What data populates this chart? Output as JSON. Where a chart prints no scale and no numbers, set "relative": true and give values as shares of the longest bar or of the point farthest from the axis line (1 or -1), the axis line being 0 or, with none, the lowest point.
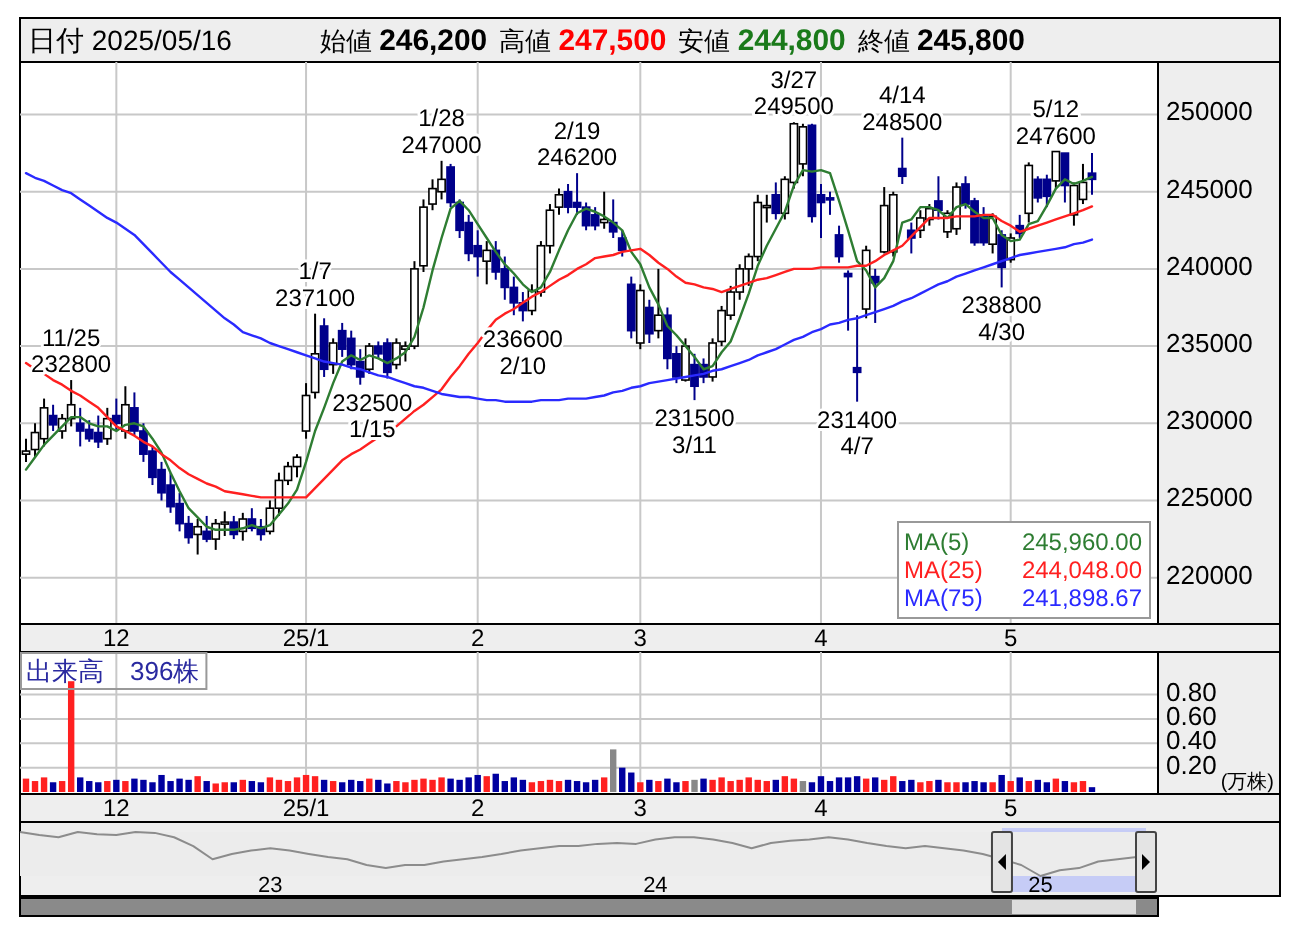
{
  "chart_data": [
    {
      "type": "other",
      "title": "日付 2025/05/16",
      "annotations": [
        "始値 **246,200**",
        "高値 **247,500**",
        "安値 **244,800**",
        "終値 **245,800**"
      ]
    },
    {
      "type": "candlestick",
      "categories": [
        null,
        null,
        null,
        null,
        null,
        null,
        null,
        null,
        null,
        null,
        "12",
        null,
        null,
        null,
        null,
        null,
        null,
        null,
        null,
        null,
        null,
        null,
        null,
        null,
        null,
        null,
        null,
        null,
        null,
        null,
        null,
        "25/1",
        null,
        null,
        null,
        null,
        null,
        null,
        null,
        null,
        null,
        null,
        null,
        null,
        null,
        null,
        null,
        null,
        null,
        null,
        "2",
        null,
        null,
        null,
        null,
        null,
        null,
        null,
        null,
        null,
        null,
        null,
        null,
        null,
        null,
        null,
        null,
        null,
        "3",
        null,
        null,
        null,
        null,
        null,
        null,
        null,
        null,
        null,
        null,
        null,
        null,
        null,
        null,
        null,
        null,
        null,
        null,
        null,
        "4",
        null,
        null,
        null,
        null,
        null,
        null,
        null,
        null,
        null,
        null,
        null,
        null,
        null,
        null,
        null,
        null,
        null,
        null,
        null,
        null,
        "5",
        null,
        null,
        null,
        null,
        null,
        null,
        null,
        null,
        null
      ],
      "ohlc": [
        [
          228000,
          229000,
          227500,
          228200
        ],
        [
          228300,
          230000,
          227800,
          229400
        ],
        [
          229000,
          231600,
          228500,
          231000
        ],
        [
          230500,
          231200,
          229500,
          229900
        ],
        [
          229500,
          230600,
          229000,
          230300
        ],
        [
          230300,
          232800,
          229800,
          231200
        ],
        [
          230000,
          231000,
          228500,
          229500
        ],
        [
          229600,
          230200,
          228800,
          229000
        ],
        [
          229400,
          230500,
          228400,
          228800
        ],
        [
          229000,
          231000,
          228600,
          230300
        ],
        [
          230500,
          231600,
          229500,
          230000
        ],
        [
          229500,
          232400,
          229000,
          231200
        ],
        [
          231000,
          232000,
          229200,
          229500
        ],
        [
          229500,
          230000,
          227500,
          228000
        ],
        [
          228200,
          228500,
          226000,
          226500
        ],
        [
          227000,
          227500,
          225000,
          225500
        ],
        [
          226000,
          226800,
          224200,
          224600
        ],
        [
          224800,
          225500,
          223000,
          223500
        ],
        [
          223500,
          224000,
          222200,
          222600
        ],
        [
          222800,
          223800,
          221500,
          223300
        ],
        [
          223000,
          224000,
          222300,
          222500
        ],
        [
          222500,
          223800,
          221800,
          223500
        ],
        [
          223500,
          224300,
          222700,
          223600
        ],
        [
          223600,
          224000,
          222500,
          222800
        ],
        [
          223000,
          224200,
          222400,
          223800
        ],
        [
          223800,
          224500,
          223000,
          223200
        ],
        [
          223300,
          223800,
          222400,
          222800
        ],
        [
          223000,
          225000,
          222800,
          224500
        ],
        [
          224500,
          226800,
          224000,
          226300
        ],
        [
          226300,
          227500,
          226000,
          227200
        ],
        [
          227200,
          228000,
          226500,
          227800
        ],
        [
          229500,
          232600,
          229000,
          231800
        ],
        [
          232000,
          237100,
          231600,
          234500
        ],
        [
          236300,
          236800,
          233000,
          233500
        ],
        [
          233800,
          235500,
          233200,
          235200
        ],
        [
          236000,
          236500,
          234300,
          234800
        ],
        [
          235500,
          236000,
          233500,
          233800
        ],
        [
          234000,
          234800,
          232500,
          233000
        ],
        [
          233500,
          235200,
          233200,
          235000
        ],
        [
          235000,
          235300,
          234200,
          234500
        ],
        [
          235200,
          235500,
          232900,
          233300
        ],
        [
          233800,
          235500,
          233500,
          235200
        ],
        [
          234800,
          235300,
          234000,
          235000
        ],
        [
          235000,
          240500,
          234800,
          240000
        ],
        [
          240200,
          244500,
          239800,
          244000
        ],
        [
          244200,
          245800,
          243800,
          245200
        ],
        [
          245000,
          247000,
          244500,
          245800
        ],
        [
          246600,
          246800,
          244000,
          244300
        ],
        [
          244300,
          244500,
          242000,
          242500
        ],
        [
          243000,
          243500,
          240500,
          241000
        ],
        [
          241500,
          242500,
          239500,
          240800
        ],
        [
          240500,
          241800,
          239000,
          241200
        ],
        [
          241200,
          241800,
          239300,
          239800
        ],
        [
          240000,
          240800,
          238000,
          238800
        ],
        [
          238800,
          239500,
          237000,
          237800
        ],
        [
          237800,
          238500,
          236600,
          237300
        ],
        [
          237300,
          239000,
          237000,
          238600
        ],
        [
          238500,
          241800,
          238200,
          241500
        ],
        [
          241500,
          244200,
          241000,
          243800
        ],
        [
          244000,
          245200,
          243500,
          244800
        ],
        [
          245000,
          245500,
          243600,
          244000
        ],
        [
          244300,
          246200,
          243500,
          244000
        ],
        [
          244000,
          244300,
          242500,
          242800
        ],
        [
          243500,
          244000,
          242500,
          242800
        ],
        [
          243000,
          245000,
          242600,
          243200
        ],
        [
          243000,
          244500,
          242000,
          242400
        ],
        [
          242000,
          242500,
          240800,
          241200
        ],
        [
          239000,
          239500,
          235500,
          236000
        ],
        [
          235200,
          239000,
          234800,
          238600
        ],
        [
          237500,
          238000,
          235200,
          235800
        ],
        [
          236000,
          240000,
          235500,
          237000
        ],
        [
          237000,
          237500,
          233500,
          234200
        ],
        [
          234500,
          235000,
          232600,
          233000
        ],
        [
          232800,
          235500,
          232700,
          235000
        ],
        [
          233800,
          234500,
          231500,
          232400
        ],
        [
          233800,
          234200,
          232600,
          233000
        ],
        [
          233000,
          235500,
          232700,
          235200
        ],
        [
          235300,
          237600,
          235000,
          237300
        ],
        [
          237000,
          238900,
          236700,
          238500
        ],
        [
          238500,
          240300,
          238000,
          240000
        ],
        [
          240000,
          241000,
          238900,
          240800
        ],
        [
          240800,
          244800,
          240500,
          244300
        ],
        [
          244000,
          244800,
          243000,
          244100
        ],
        [
          244800,
          245600,
          243200,
          243600
        ],
        [
          243600,
          246000,
          243200,
          245800
        ],
        [
          245600,
          249500,
          245200,
          249400
        ],
        [
          246800,
          249400,
          246000,
          249200
        ],
        [
          249300,
          249400,
          243000,
          243400
        ],
        [
          244800,
          245500,
          242000,
          244300
        ],
        [
          244600,
          245000,
          243500,
          244500
        ],
        [
          242200,
          242800,
          240400,
          240800
        ],
        [
          239700,
          239900,
          236000,
          239500
        ],
        [
          233600,
          237000,
          231400,
          233300
        ],
        [
          237400,
          241500,
          236800,
          241200
        ],
        [
          239500,
          240000,
          236500,
          239100
        ],
        [
          241100,
          245300,
          241000,
          244100
        ],
        [
          241100,
          245000,
          240800,
          244800
        ],
        [
          246500,
          248500,
          245500,
          246000
        ],
        [
          242500,
          243000,
          241000,
          242000
        ],
        [
          242500,
          243800,
          242000,
          243300
        ],
        [
          243200,
          244200,
          242800,
          243900
        ],
        [
          244400,
          246000,
          243200,
          243800
        ],
        [
          242400,
          243800,
          242000,
          243600
        ],
        [
          242600,
          245600,
          242200,
          245300
        ],
        [
          245500,
          246000,
          243900,
          244200
        ],
        [
          244400,
          244600,
          241500,
          241700
        ],
        [
          243500,
          244000,
          241500,
          241700
        ],
        [
          241600,
          243600,
          241000,
          243400
        ],
        [
          242200,
          242500,
          238800,
          240100
        ],
        [
          240600,
          242300,
          240400,
          242000
        ],
        [
          242800,
          243500,
          242000,
          242300
        ],
        [
          243600,
          246900,
          243000,
          246700
        ],
        [
          245800,
          246000,
          244300,
          244600
        ],
        [
          245800,
          246100,
          244000,
          244700
        ],
        [
          245700,
          247600,
          245200,
          247600
        ],
        [
          247500,
          247500,
          244300,
          245400
        ],
        [
          243500,
          245600,
          242800,
          245400
        ],
        [
          244500,
          246800,
          244200,
          245600
        ],
        [
          246200,
          247500,
          244800,
          245800
        ]
      ],
      "series": [
        {
          "name": "MA(5)",
          "type": "line",
          "color": "#2e7d32",
          "values": [
            227000,
            227800,
            228600,
            229200,
            229800,
            230400,
            230400,
            230000,
            229800,
            229800,
            229500,
            229900,
            230000,
            229800,
            229000,
            228100,
            226800,
            225600,
            224500,
            223900,
            223300,
            223100,
            223100,
            223100,
            223200,
            223400,
            223200,
            223400,
            224100,
            224800,
            225700,
            227500,
            229500,
            231000,
            232600,
            234000,
            234400,
            234100,
            234400,
            234200,
            233900,
            234200,
            234600,
            235600,
            237500,
            239900,
            242000,
            243900,
            244400,
            243800,
            242900,
            242000,
            241100,
            240300,
            239700,
            239000,
            238500,
            238800,
            239800,
            241200,
            242500,
            243600,
            243900,
            243700,
            243400,
            243000,
            242500,
            241100,
            240300,
            238800,
            237700,
            236300,
            235700,
            235000,
            234300,
            233500,
            233700,
            234600,
            235300,
            236800,
            238400,
            240200,
            241500,
            242600,
            243700,
            245400,
            246400,
            246300,
            246400,
            246200,
            244400,
            242500,
            240500,
            239900,
            238800,
            239400,
            240500,
            243000,
            243200,
            244000,
            244000,
            243800,
            243300,
            244000,
            244200,
            243700,
            243300,
            243300,
            242200,
            241800,
            241900,
            242900,
            243100,
            244100,
            245200,
            245800,
            245500,
            245700,
            245960
          ]
        },
        {
          "name": "MA(25)",
          "type": "line",
          "color": "#ff2020",
          "values": [
            233900,
            233500,
            233200,
            232800,
            232500,
            232100,
            231800,
            231400,
            231000,
            230400,
            229800,
            229500,
            229200,
            228800,
            228500,
            228000,
            227600,
            227100,
            226700,
            226400,
            226100,
            225900,
            225600,
            225500,
            225400,
            225300,
            225200,
            225200,
            225200,
            225200,
            225200,
            225200,
            225800,
            226400,
            227000,
            227600,
            228000,
            228300,
            228700,
            229100,
            229400,
            229800,
            230300,
            230800,
            231200,
            231700,
            232200,
            233000,
            233700,
            234500,
            235200,
            236000,
            236700,
            237100,
            237400,
            237800,
            238200,
            238500,
            238900,
            239300,
            239600,
            240000,
            240300,
            240700,
            240800,
            240900,
            241100,
            241200,
            241300,
            240900,
            240400,
            240000,
            239500,
            239100,
            239000,
            238800,
            238700,
            238500,
            238700,
            238900,
            239100,
            239300,
            239400,
            239600,
            239800,
            240000,
            240000,
            240000,
            240100,
            240100,
            240100,
            240100,
            240200,
            240200,
            240500,
            240900,
            241200,
            241500,
            242100,
            242700,
            243300,
            243300,
            243300,
            243400,
            243400,
            243400,
            243500,
            243500,
            243100,
            242800,
            242400,
            242600,
            242800,
            243000,
            243200,
            243400,
            243600,
            243800,
            244048
          ]
        },
        {
          "name": "MA(75)",
          "type": "line",
          "color": "#2a2aff",
          "values": [
            246200,
            245900,
            245700,
            245400,
            245100,
            244900,
            244500,
            244100,
            243700,
            243300,
            243000,
            242600,
            242200,
            241600,
            241000,
            240400,
            239800,
            239300,
            238800,
            238300,
            237800,
            237300,
            236800,
            236400,
            235900,
            235700,
            235500,
            235200,
            235000,
            234800,
            234600,
            234400,
            234200,
            234000,
            233900,
            233800,
            233600,
            233500,
            233300,
            233100,
            233000,
            232800,
            232600,
            232400,
            232300,
            232100,
            231900,
            231800,
            231700,
            231700,
            231600,
            231500,
            231500,
            231400,
            231400,
            231400,
            231400,
            231500,
            231500,
            231500,
            231600,
            231600,
            231600,
            231700,
            231800,
            232000,
            232100,
            232300,
            232400,
            232600,
            232700,
            232800,
            232900,
            233000,
            233100,
            233200,
            233400,
            233500,
            233700,
            233900,
            234100,
            234400,
            234600,
            234800,
            235100,
            235400,
            235600,
            235900,
            236100,
            236400,
            236500,
            236700,
            236800,
            237000,
            237200,
            237400,
            237600,
            237900,
            238100,
            238400,
            238700,
            239000,
            239200,
            239500,
            239700,
            239900,
            240100,
            240300,
            240500,
            240700,
            240900,
            241000,
            241100,
            241200,
            241300,
            241400,
            241600,
            241700,
            241898.67
          ]
        }
      ],
      "ylim": [
        217000,
        253400
      ],
      "yticks": [
        220000,
        225000,
        230000,
        235000,
        240000,
        245000,
        250000
      ],
      "grid": true,
      "legend": "bottom right",
      "annotations": [
        {
          "text": "11/25\n232800",
          "y": 232800
        },
        {
          "text": "1/7\n237100",
          "y": 237100
        },
        {
          "text": "232500\n1/15",
          "y": 232500
        },
        {
          "text": "1/28\n247000",
          "y": 247000
        },
        {
          "text": "236600\n2/10",
          "y": 236600
        },
        {
          "text": "2/19\n246200",
          "y": 246200
        },
        {
          "text": "231500\n3/11",
          "y": 231500
        },
        {
          "text": "3/27\n249500",
          "y": 249500
        },
        {
          "text": "231400\n4/7",
          "y": 231400
        },
        {
          "text": "4/14\n248500",
          "y": 248500
        },
        {
          "text": "238800\n4/30",
          "y": 238800
        },
        {
          "text": "5/12\n247600",
          "y": 247600
        },
        "245,960.00",
        "244,048.00",
        "241,898.67"
      ]
    },
    {
      "type": "bar",
      "title": "出来高　396株",
      "ylabel": "(万株)",
      "categories": [
        null,
        null,
        null,
        null,
        null,
        null,
        null,
        null,
        null,
        null,
        "12",
        null,
        null,
        null,
        null,
        null,
        null,
        null,
        null,
        null,
        null,
        null,
        null,
        null,
        null,
        null,
        null,
        null,
        null,
        null,
        null,
        "25/1",
        null,
        null,
        null,
        null,
        null,
        null,
        null,
        null,
        null,
        null,
        null,
        null,
        null,
        null,
        null,
        null,
        null,
        null,
        "2",
        null,
        null,
        null,
        null,
        null,
        null,
        null,
        null,
        null,
        null,
        null,
        null,
        null,
        null,
        null,
        null,
        null,
        "3",
        null,
        null,
        null,
        null,
        null,
        null,
        null,
        null,
        null,
        null,
        null,
        null,
        null,
        null,
        null,
        null,
        null,
        null,
        null,
        "4",
        null,
        null,
        null,
        null,
        null,
        null,
        null,
        null,
        null,
        null,
        null,
        null,
        null,
        null,
        null,
        null,
        null,
        null,
        null,
        null,
        "5",
        null,
        null,
        null,
        null,
        null,
        null,
        null,
        null,
        null
      ],
      "values": [
        0.11,
        0.09,
        0.12,
        0.08,
        0.09,
        0.91,
        0.12,
        0.09,
        0.08,
        0.09,
        0.1,
        0.09,
        0.11,
        0.1,
        0.08,
        0.14,
        0.09,
        0.11,
        0.1,
        0.13,
        0.09,
        0.07,
        0.08,
        0.08,
        0.1,
        0.09,
        0.08,
        0.12,
        0.1,
        0.09,
        0.12,
        0.14,
        0.13,
        0.1,
        0.09,
        0.08,
        0.1,
        0.09,
        0.11,
        0.1,
        0.07,
        0.09,
        0.08,
        0.1,
        0.11,
        0.1,
        0.12,
        0.11,
        0.1,
        0.12,
        0.14,
        0.13,
        0.15,
        0.09,
        0.12,
        0.1,
        0.08,
        0.09,
        0.1,
        0.09,
        0.1,
        0.09,
        0.08,
        0.1,
        0.12,
        0.35,
        0.2,
        0.16,
        0.08,
        0.1,
        0.09,
        0.11,
        0.08,
        0.09,
        0.1,
        0.11,
        0.1,
        0.12,
        0.09,
        0.1,
        0.12,
        0.1,
        0.09,
        0.1,
        0.13,
        0.11,
        0.09,
        0.08,
        0.13,
        0.09,
        0.12,
        0.12,
        0.13,
        0.11,
        0.12,
        0.1,
        0.13,
        0.09,
        0.1,
        0.08,
        0.09,
        0.1,
        0.08,
        0.08,
        0.08,
        0.09,
        0.08,
        0.08,
        0.14,
        0.09,
        0.12,
        0.09,
        0.1,
        0.08,
        0.11,
        0.09,
        0.08,
        0.09,
        0.0396
      ],
      "colors": [
        "#ff2020",
        "#ff2020",
        "#ff2020",
        "#0000a0",
        "#ff2020",
        "#ff2020",
        "#0000a0",
        "#0000a0",
        "#0000a0",
        "#ff2020",
        "#0000a0",
        "#ff2020",
        "#0000a0",
        "#0000a0",
        "#0000a0",
        "#0000a0",
        "#0000a0",
        "#0000a0",
        "#0000a0",
        "#ff2020",
        "#0000a0",
        "#ff2020",
        "#ff2020",
        "#0000a0",
        "#ff2020",
        "#0000a0",
        "#0000a0",
        "#ff2020",
        "#ff2020",
        "#ff2020",
        "#ff2020",
        "#ff2020",
        "#ff2020",
        "#0000a0",
        "#ff2020",
        "#0000a0",
        "#0000a0",
        "#0000a0",
        "#ff2020",
        "#0000a0",
        "#0000a0",
        "#ff2020",
        "#ff2020",
        "#ff2020",
        "#ff2020",
        "#ff2020",
        "#ff2020",
        "#0000a0",
        "#0000a0",
        "#0000a0",
        "#0000a0",
        "#ff2020",
        "#0000a0",
        "#0000a0",
        "#0000a0",
        "#0000a0",
        "#ff2020",
        "#ff2020",
        "#ff2020",
        "#ff2020",
        "#0000a0",
        "#0000a0",
        "#0000a0",
        "#0000a0",
        "#ff2020",
        "#888888",
        "#0000a0",
        "#0000a0",
        "#ff2020",
        "#0000a0",
        "#ff2020",
        "#0000a0",
        "#0000a0",
        "#ff2020",
        "#888888",
        "#0000a0",
        "#ff2020",
        "#ff2020",
        "#ff2020",
        "#ff2020",
        "#ff2020",
        "#ff2020",
        "#ff2020",
        "#0000a0",
        "#ff2020",
        "#ff2020",
        "#888888",
        "#0000a0",
        "#0000a0",
        "#0000a0",
        "#0000a0",
        "#0000a0",
        "#0000a0",
        "#ff2020",
        "#0000a0",
        "#ff2020",
        "#ff2020",
        "#0000a0",
        "#0000a0",
        "#ff2020",
        "#ff2020",
        "#0000a0",
        "#ff2020",
        "#ff2020",
        "#0000a0",
        "#0000a0",
        "#0000a0",
        "#ff2020",
        "#0000a0",
        "#ff2020",
        "#0000a0",
        "#ff2020",
        "#0000a0",
        "#0000a0",
        "#ff2020",
        "#0000a0",
        "#ff2020",
        "#ff2020",
        "#0000a0"
      ],
      "ylim": [
        0,
        1.15
      ],
      "yticks": [
        {
          "value": 0.2,
          "label": "0.20"
        },
        {
          "value": 0.4,
          "label": "0.40"
        },
        {
          "value": 0.6,
          "label": "0.60"
        },
        {
          "value": 0.8,
          "label": "0.80"
        }
      ],
      "grid": true
    },
    {
      "type": "line",
      "relative": true,
      "color": "#8c8c8c",
      "categories": [
        null,
        null,
        null,
        null,
        null,
        null,
        null,
        null,
        null,
        null,
        null,
        null,
        null,
        "23",
        null,
        null,
        null,
        null,
        null,
        null,
        null,
        null,
        null,
        null,
        null,
        null,
        null,
        null,
        null,
        null,
        null,
        null,
        null,
        "24",
        null,
        null,
        null,
        null,
        null,
        null,
        null,
        null,
        null,
        null,
        null,
        null,
        null,
        null,
        null,
        null,
        null,
        null,
        null,
        "25",
        null,
        null,
        null,
        null,
        null,
        null
      ],
      "values": [
        1.0,
        0.93,
        0.88,
        1.0,
        0.95,
        0.93,
        1.0,
        0.98,
        0.88,
        0.68,
        0.38,
        0.5,
        0.58,
        0.63,
        0.58,
        0.5,
        0.43,
        0.38,
        0.25,
        0.18,
        0.25,
        0.25,
        0.33,
        0.38,
        0.43,
        0.5,
        0.58,
        0.63,
        0.68,
        0.68,
        0.73,
        0.75,
        0.73,
        0.83,
        0.88,
        0.88,
        0.83,
        0.75,
        0.63,
        0.75,
        0.8,
        0.83,
        0.88,
        0.83,
        0.75,
        0.68,
        0.63,
        0.68,
        0.63,
        0.58,
        0.5,
        0.38,
        0.25,
        0.0,
        0.13,
        0.18,
        0.33,
        0.38,
        0.43,
        0.38
      ]
    }
  ]
}
